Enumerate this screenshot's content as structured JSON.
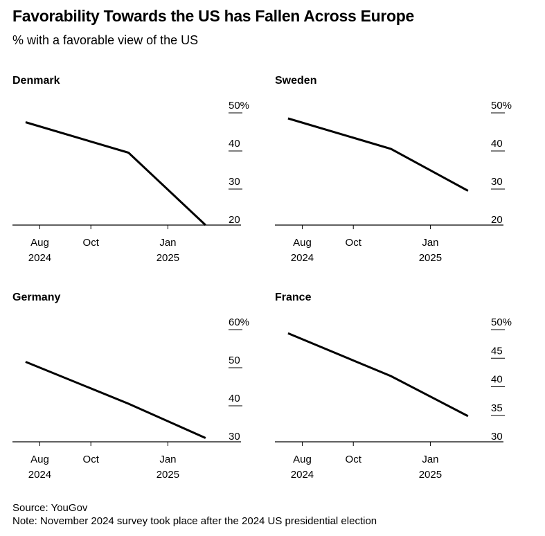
{
  "title": "Favorability Towards the US has Fallen Across Europe",
  "subtitle": "% with a favorable view of the US",
  "source": "Source: YouGov",
  "note": "Note: November 2024 survey took place after the 2024 US presidential election",
  "colors": {
    "line": "#000000",
    "axis": "#000000",
    "text": "#000000",
    "background": "#ffffff"
  },
  "chart_data": [
    {
      "type": "line",
      "title": "Denmark",
      "x": [
        "2024-07-15",
        "2024-11-15",
        "2025-02-15"
      ],
      "series": [
        {
          "values": [
            47,
            39,
            20
          ]
        }
      ],
      "ylim": [
        20,
        50
      ],
      "yticks": [
        20,
        30,
        40,
        50
      ],
      "ytick_labels": [
        "20",
        "30",
        "40",
        "50%"
      ],
      "xticks": [
        "2024-08-01",
        "2024-10-01",
        "2025-01-01"
      ],
      "xtick_labels": [
        [
          "Aug",
          "2024"
        ],
        [
          "Oct",
          ""
        ],
        [
          "Jan",
          "2025"
        ]
      ],
      "xlim": [
        "2024-07-01",
        "2025-03-31"
      ]
    },
    {
      "type": "line",
      "title": "Sweden",
      "x": [
        "2024-07-15",
        "2024-11-15",
        "2025-02-15"
      ],
      "series": [
        {
          "values": [
            48,
            40,
            29
          ]
        }
      ],
      "ylim": [
        20,
        50
      ],
      "yticks": [
        20,
        30,
        40,
        50
      ],
      "ytick_labels": [
        "20",
        "30",
        "40",
        "50%"
      ],
      "xticks": [
        "2024-08-01",
        "2024-10-01",
        "2025-01-01"
      ],
      "xtick_labels": [
        [
          "Aug",
          "2024"
        ],
        [
          "Oct",
          ""
        ],
        [
          "Jan",
          "2025"
        ]
      ],
      "xlim": [
        "2024-07-01",
        "2025-03-31"
      ]
    },
    {
      "type": "line",
      "title": "Germany",
      "x": [
        "2024-07-15",
        "2024-11-15",
        "2025-02-15"
      ],
      "series": [
        {
          "values": [
            51,
            40,
            31
          ]
        }
      ],
      "ylim": [
        30,
        60
      ],
      "yticks": [
        30,
        40,
        50,
        60
      ],
      "ytick_labels": [
        "30",
        "40",
        "50",
        "60%"
      ],
      "xticks": [
        "2024-08-01",
        "2024-10-01",
        "2025-01-01"
      ],
      "xtick_labels": [
        [
          "Aug",
          "2024"
        ],
        [
          "Oct",
          ""
        ],
        [
          "Jan",
          "2025"
        ]
      ],
      "xlim": [
        "2024-07-01",
        "2025-03-31"
      ]
    },
    {
      "type": "line",
      "title": "France",
      "x": [
        "2024-07-15",
        "2024-11-15",
        "2025-02-15"
      ],
      "series": [
        {
          "values": [
            49,
            41.5,
            34.5
          ]
        }
      ],
      "ylim": [
        30,
        50
      ],
      "yticks": [
        30,
        35,
        40,
        45,
        50
      ],
      "ytick_labels": [
        "30",
        "35",
        "40",
        "45",
        "50%"
      ],
      "xticks": [
        "2024-08-01",
        "2024-10-01",
        "2025-01-01"
      ],
      "xtick_labels": [
        [
          "Aug",
          "2024"
        ],
        [
          "Oct",
          ""
        ],
        [
          "Jan",
          "2025"
        ]
      ],
      "xlim": [
        "2024-07-01",
        "2025-03-31"
      ]
    }
  ]
}
